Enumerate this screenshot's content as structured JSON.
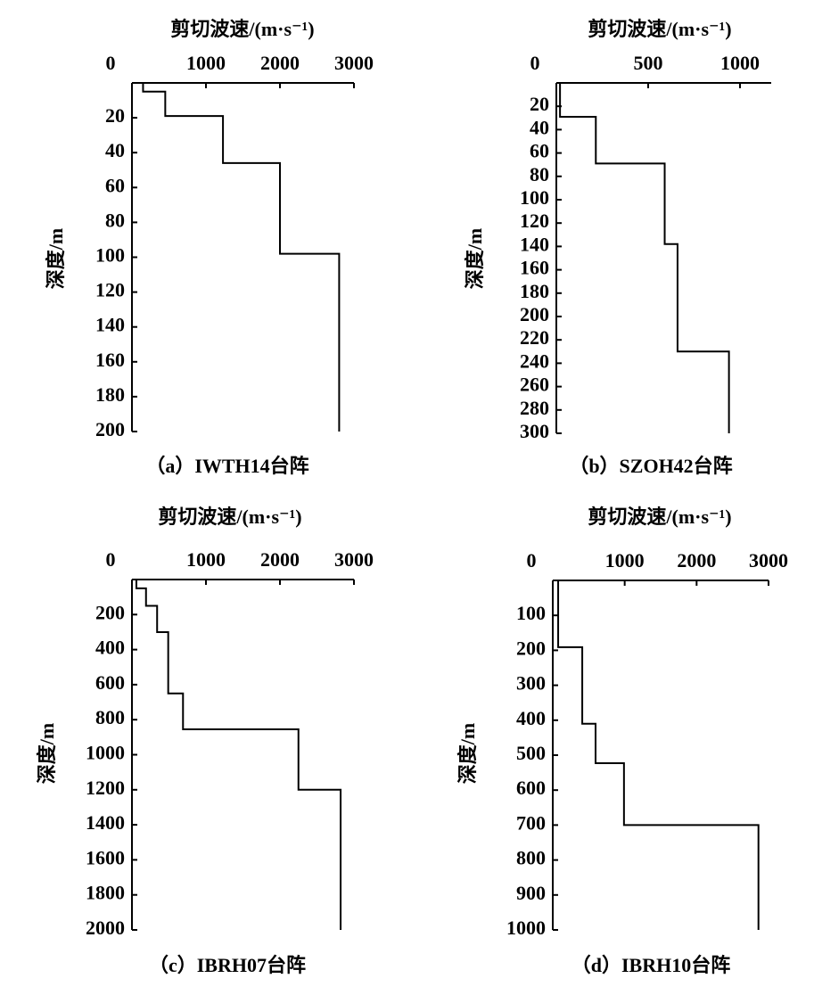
{
  "chart_data": [
    {
      "type": "line",
      "title": "剪切波速/(m·s⁻¹)",
      "y_label": "深度/m",
      "caption": "（a）IWTH14台阵",
      "x": [
        150,
        150,
        450,
        450,
        1230,
        1230,
        2000,
        2000,
        2800,
        2800
      ],
      "values": [
        0,
        5,
        5,
        19,
        19,
        46,
        46,
        98,
        98,
        200
      ],
      "color": "#000000",
      "xlim": [
        0,
        3000
      ],
      "xticks": [
        0,
        1000,
        2000,
        3000
      ],
      "ylim": [
        0,
        200
      ],
      "yticks": [
        20,
        40,
        60,
        80,
        100,
        120,
        140,
        160,
        180,
        200
      ],
      "y_inverted": true
    },
    {
      "type": "line",
      "title": "剪切波速/(m·s⁻¹)",
      "y_label": "深度/m",
      "caption": "（b）SZOH42台阵",
      "x": [
        20,
        20,
        215,
        215,
        590,
        590,
        660,
        660,
        940,
        940
      ],
      "values": [
        0,
        29,
        29,
        69,
        69,
        138,
        138,
        230,
        230,
        300
      ],
      "color": "#000000",
      "xlim": [
        0,
        1170
      ],
      "xticks": [
        0,
        500,
        1000
      ],
      "ylim": [
        0,
        300
      ],
      "yticks": [
        20,
        40,
        60,
        80,
        100,
        120,
        140,
        160,
        180,
        200,
        220,
        240,
        260,
        280,
        300
      ],
      "y_inverted": true
    },
    {
      "type": "line",
      "title": "剪切波速/(m·s⁻¹)",
      "y_label": "深度/m",
      "caption": "（c）IBRH07台阵",
      "x": [
        60,
        60,
        190,
        190,
        340,
        340,
        490,
        490,
        690,
        690,
        2250,
        2250,
        2820,
        2820
      ],
      "values": [
        0,
        50,
        50,
        150,
        150,
        300,
        300,
        650,
        650,
        855,
        855,
        1200,
        1200,
        2000
      ],
      "color": "#000000",
      "xlim": [
        0,
        3000
      ],
      "xticks": [
        0,
        1000,
        2000,
        3000
      ],
      "ylim": [
        0,
        2000
      ],
      "yticks": [
        200,
        400,
        600,
        800,
        1000,
        1200,
        1400,
        1600,
        1800,
        2000
      ],
      "y_inverted": true
    },
    {
      "type": "line",
      "title": "剪切波速/(m·s⁻¹)",
      "y_label": "深度/m",
      "caption": "（d）IBRH10台阵",
      "x": [
        75,
        75,
        410,
        410,
        595,
        595,
        990,
        990,
        2860,
        2860
      ],
      "values": [
        0,
        191,
        191,
        410,
        410,
        523,
        523,
        700,
        700,
        1000
      ],
      "color": "#000000",
      "xlim": [
        0,
        3000
      ],
      "xticks": [
        0,
        1000,
        2000,
        3000
      ],
      "ylim": [
        0,
        1000
      ],
      "yticks": [
        100,
        200,
        300,
        400,
        500,
        600,
        700,
        800,
        900,
        1000
      ],
      "y_inverted": true
    }
  ]
}
